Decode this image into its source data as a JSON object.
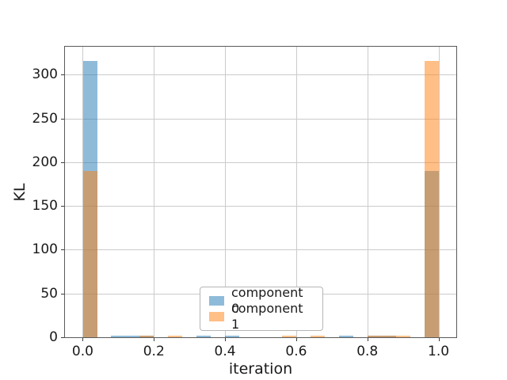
{
  "chart_data": {
    "type": "bar",
    "subtype": "histogram",
    "title": "",
    "xlabel": "iteration",
    "ylabel": "KL",
    "xlim": [
      -0.05,
      1.05
    ],
    "ylim": [
      0,
      332
    ],
    "grid": true,
    "bin_width": 0.04,
    "xtick_values": [
      0.0,
      0.2,
      0.4,
      0.6,
      0.8,
      1.0
    ],
    "xtick_labels": [
      "0.0",
      "0.2",
      "0.4",
      "0.6",
      "0.8",
      "1.0"
    ],
    "ytick_values": [
      0,
      50,
      100,
      150,
      200,
      250,
      300
    ],
    "ytick_labels": [
      "0",
      "50",
      "100",
      "150",
      "200",
      "250",
      "300"
    ],
    "series": [
      {
        "name": "component 0",
        "base_color": "#1f77b4",
        "fill": "rgba(31,119,180,0.5)",
        "bars": [
          {
            "x0": 0.0,
            "x1": 0.04,
            "value": 316
          },
          {
            "x0": 0.08,
            "x1": 0.16,
            "value": 2
          },
          {
            "x0": 0.16,
            "x1": 0.2,
            "value": 2
          },
          {
            "x0": 0.32,
            "x1": 0.36,
            "value": 2
          },
          {
            "x0": 0.4,
            "x1": 0.44,
            "value": 2
          },
          {
            "x0": 0.72,
            "x1": 0.76,
            "value": 2
          },
          {
            "x0": 0.8,
            "x1": 0.88,
            "value": 2
          },
          {
            "x0": 0.96,
            "x1": 1.0,
            "value": 190
          }
        ]
      },
      {
        "name": "component 1",
        "base_color": "#ff7f0e",
        "fill": "rgba(255,127,14,0.5)",
        "bars": [
          {
            "x0": 0.0,
            "x1": 0.04,
            "value": 190
          },
          {
            "x0": 0.16,
            "x1": 0.2,
            "value": 2
          },
          {
            "x0": 0.24,
            "x1": 0.28,
            "value": 2
          },
          {
            "x0": 0.56,
            "x1": 0.6,
            "value": 2
          },
          {
            "x0": 0.64,
            "x1": 0.68,
            "value": 2
          },
          {
            "x0": 0.8,
            "x1": 0.92,
            "value": 2
          },
          {
            "x0": 0.96,
            "x1": 1.0,
            "value": 316
          }
        ]
      }
    ],
    "legend": {
      "position": "lower center",
      "entries": [
        {
          "label": "component 0",
          "swatch_color": "#8fbbda"
        },
        {
          "label": "component 1",
          "swatch_color": "#ffbf86"
        }
      ]
    },
    "colors": {
      "background": "#ffffff",
      "grid": "#cbcbcb",
      "spine": "#5a5a5a",
      "text": "#1a1a1a",
      "legend_border": "#b5b5b5",
      "overlap_blend": "#c79d74"
    }
  }
}
